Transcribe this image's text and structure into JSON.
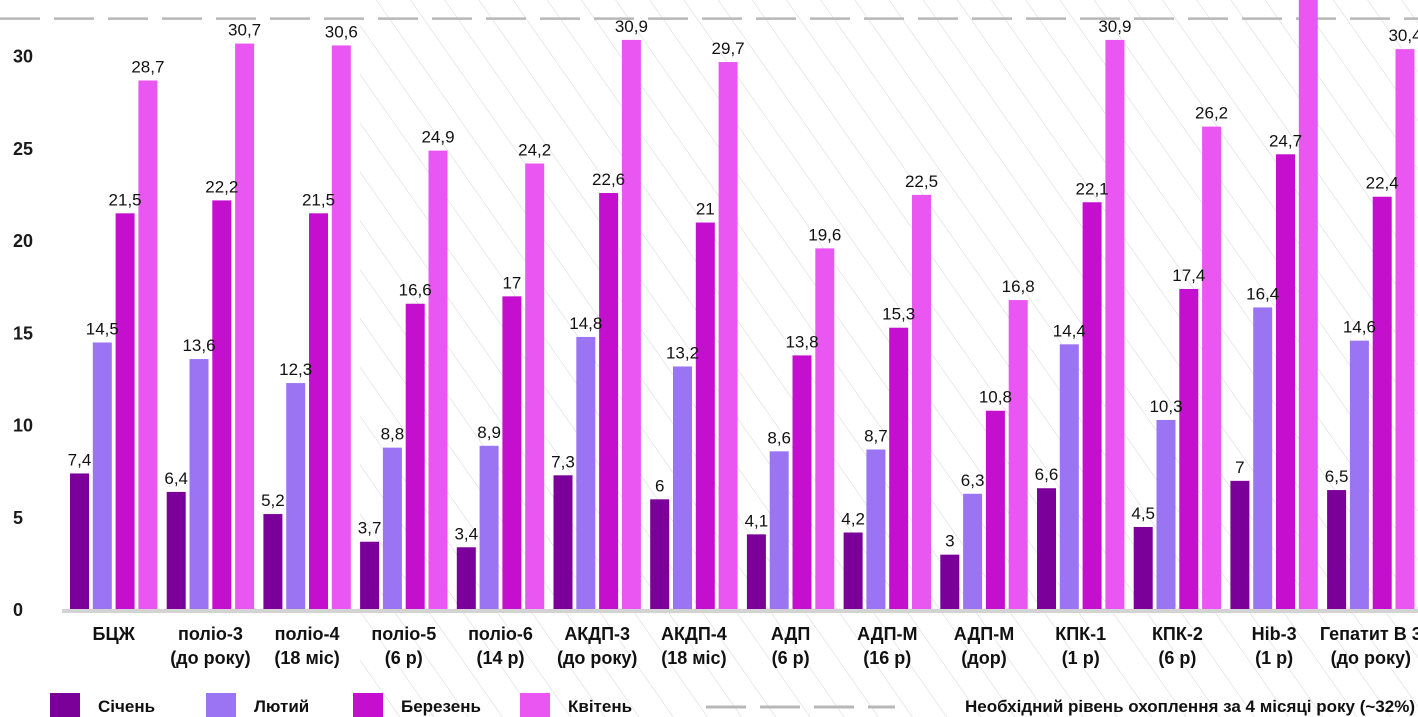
{
  "chart_data": {
    "type": "bar",
    "title": "",
    "xlabel": "",
    "ylabel": "",
    "ylim": [
      0,
      32
    ],
    "yticks": [
      0,
      5,
      10,
      15,
      20,
      25,
      30
    ],
    "grid": false,
    "legend_position": "bottom",
    "categories": [
      [
        "БЦЖ"
      ],
      [
        "поліо-3",
        "(до року)"
      ],
      [
        "поліо-4",
        "(18 міс)"
      ],
      [
        "поліо-5",
        "(6 р)"
      ],
      [
        "поліо-6",
        "(14 р)"
      ],
      [
        "АКДП-3",
        "(до року)"
      ],
      [
        "АКДП-4",
        "(18 міс)"
      ],
      [
        "АДП",
        "(6 р)"
      ],
      [
        "АДП-М",
        "(16 р)"
      ],
      [
        "АДП-М",
        "(дор)"
      ],
      [
        "КПК-1",
        "(1 р)"
      ],
      [
        "КПК-2",
        "(6 р)"
      ],
      [
        "Hib-3",
        "(1 р)"
      ],
      [
        "Гепатит В 3",
        "(до року)"
      ]
    ],
    "series": [
      {
        "name": "Січень",
        "color": "#7a0099",
        "values": [
          7.4,
          6.4,
          5.2,
          3.7,
          3.4,
          7.3,
          6,
          4.1,
          4.2,
          3,
          6.6,
          4.5,
          7,
          6.5
        ],
        "labels": [
          "7,4",
          "6,4",
          "5,2",
          "3,7",
          "3,4",
          "7,3",
          "6",
          "4,1",
          "4,2",
          "3",
          "6,6",
          "4,5",
          "7",
          "6,5"
        ]
      },
      {
        "name": "Лютий",
        "color": "#9b74f4",
        "values": [
          14.5,
          13.6,
          12.3,
          8.8,
          8.9,
          14.8,
          13.2,
          8.6,
          8.7,
          6.3,
          14.4,
          10.3,
          16.4,
          14.6
        ],
        "labels": [
          "14,5",
          "13,6",
          "12,3",
          "8,8",
          "8,9",
          "14,8",
          "13,2",
          "8,6",
          "8,7",
          "6,3",
          "14,4",
          "10,3",
          "16,4",
          "14,6"
        ]
      },
      {
        "name": "Березень",
        "color": "#c50fcf",
        "values": [
          21.5,
          22.2,
          21.5,
          16.6,
          17,
          22.6,
          21,
          13.8,
          15.3,
          10.8,
          22.1,
          17.4,
          24.7,
          22.4
        ],
        "labels": [
          "21,5",
          "22,2",
          "21,5",
          "16,6",
          "17",
          "22,6",
          "21",
          "13,8",
          "15,3",
          "10,8",
          "22,1",
          "17,4",
          "24,7",
          "22,4"
        ]
      },
      {
        "name": "Квітень",
        "color": "#ea56f2",
        "values": [
          28.7,
          30.7,
          30.6,
          24.9,
          24.2,
          30.9,
          29.7,
          19.6,
          22.5,
          16.8,
          30.9,
          26.2,
          34,
          30.4
        ],
        "labels": [
          "28,7",
          "30,7",
          "30,6",
          "24,9",
          "24,2",
          "30,9",
          "29,7",
          "19,6",
          "22,5",
          "16,8",
          "30,9",
          "26,2",
          "",
          "30,4"
        ]
      }
    ],
    "reference_line": {
      "name": "Необхідний рівень охоплення за 4 місяці року (~32%)",
      "value": 32,
      "color": "#b8b8b8",
      "style": "dashed"
    }
  }
}
